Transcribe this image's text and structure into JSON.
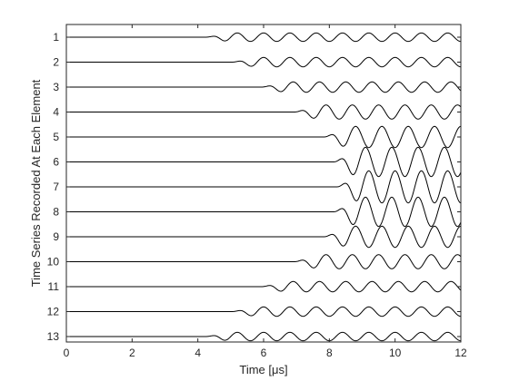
{
  "chart_data": {
    "type": "line",
    "xlabel": "Time [μs]",
    "ylabel": "Time Series Recorded At Each Element",
    "xlim": [
      0,
      12
    ],
    "x_ticks": [
      "0",
      "2",
      "4",
      "6",
      "8",
      "10",
      "12"
    ],
    "y_ticks": [
      "1",
      "2",
      "3",
      "4",
      "5",
      "6",
      "7",
      "8",
      "9",
      "10",
      "11",
      "12",
      "13"
    ],
    "grid": false,
    "box": true,
    "line_color": "#000000",
    "signal_period_us": 0.8,
    "series": [
      {
        "onset_us": 4.2,
        "amplitude": 0.18
      },
      {
        "onset_us": 5.0,
        "amplitude": 0.2
      },
      {
        "onset_us": 5.9,
        "amplitude": 0.22
      },
      {
        "onset_us": 6.9,
        "amplitude": 0.3
      },
      {
        "onset_us": 7.8,
        "amplitude": 0.45
      },
      {
        "onset_us": 8.1,
        "amplitude": 0.62
      },
      {
        "onset_us": 8.2,
        "amplitude": 0.68
      },
      {
        "onset_us": 8.1,
        "amplitude": 0.62
      },
      {
        "onset_us": 7.8,
        "amplitude": 0.45
      },
      {
        "onset_us": 6.9,
        "amplitude": 0.3
      },
      {
        "onset_us": 5.9,
        "amplitude": 0.22
      },
      {
        "onset_us": 5.0,
        "amplitude": 0.2
      },
      {
        "onset_us": 4.2,
        "amplitude": 0.18
      }
    ]
  }
}
